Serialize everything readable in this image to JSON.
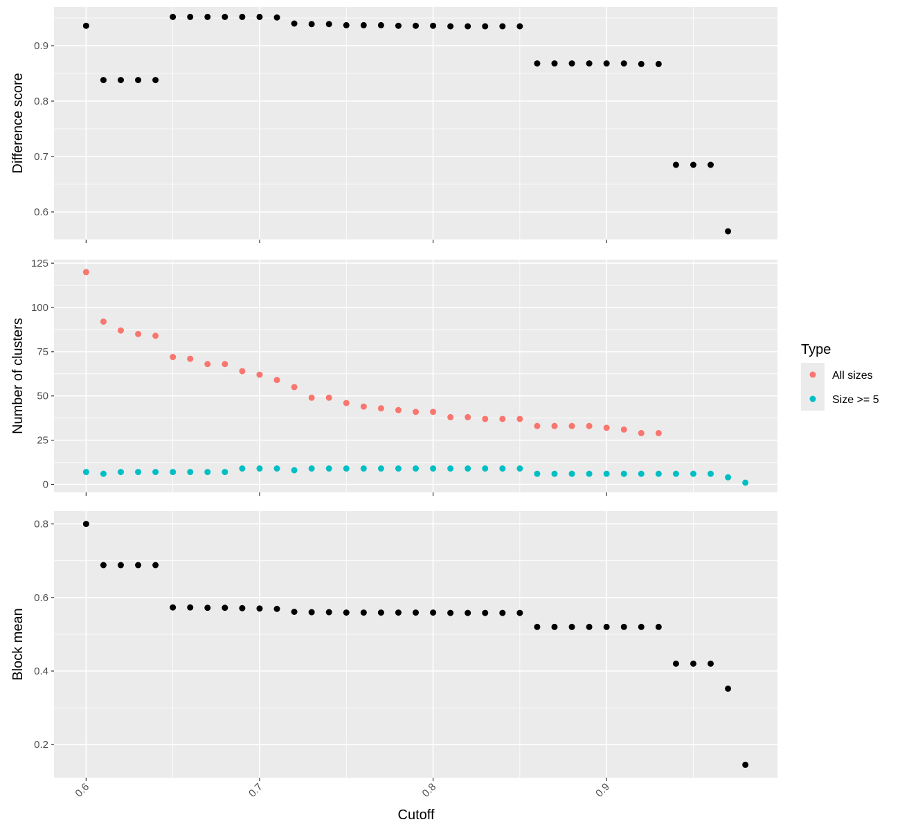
{
  "chart_data": [
    {
      "type": "scatter",
      "ylabel": "Difference score",
      "ylim": [
        0.55,
        0.97
      ],
      "yticks": [
        0.6,
        0.7,
        0.8,
        0.9
      ],
      "xlim": [
        0.5815,
        0.9985
      ],
      "xticks": [
        0.6,
        0.7,
        0.8,
        0.9
      ],
      "show_x_tick_labels": false,
      "grid": true,
      "series": [
        {
          "color": "#000000",
          "x": [
            0.6,
            0.61,
            0.62,
            0.63,
            0.64,
            0.65,
            0.66,
            0.67,
            0.68,
            0.69,
            0.7,
            0.71,
            0.72,
            0.73,
            0.74,
            0.75,
            0.76,
            0.77,
            0.78,
            0.79,
            0.8,
            0.81,
            0.82,
            0.83,
            0.84,
            0.85,
            0.86,
            0.87,
            0.88,
            0.89,
            0.9,
            0.91,
            0.92,
            0.93,
            0.94,
            0.95,
            0.96,
            0.97
          ],
          "y": [
            0.936,
            0.838,
            0.838,
            0.838,
            0.838,
            0.952,
            0.952,
            0.952,
            0.952,
            0.952,
            0.952,
            0.951,
            0.94,
            0.939,
            0.939,
            0.937,
            0.937,
            0.937,
            0.936,
            0.936,
            0.936,
            0.935,
            0.935,
            0.935,
            0.935,
            0.935,
            0.868,
            0.868,
            0.868,
            0.868,
            0.868,
            0.868,
            0.867,
            0.867,
            0.685,
            0.685,
            0.685,
            0.565
          ]
        }
      ]
    },
    {
      "type": "scatter",
      "ylabel": "Number of clusters",
      "ylim": [
        -4.5,
        127
      ],
      "yticks": [
        0,
        25,
        50,
        75,
        100,
        125
      ],
      "xlim": [
        0.5815,
        0.9985
      ],
      "xticks": [
        0.6,
        0.7,
        0.8,
        0.9
      ],
      "show_x_tick_labels": false,
      "grid": true,
      "series": [
        {
          "name": "All sizes",
          "color": "#F8766D",
          "x": [
            0.6,
            0.61,
            0.62,
            0.63,
            0.64,
            0.65,
            0.66,
            0.67,
            0.68,
            0.69,
            0.7,
            0.71,
            0.72,
            0.73,
            0.74,
            0.75,
            0.76,
            0.77,
            0.78,
            0.79,
            0.8,
            0.81,
            0.82,
            0.83,
            0.84,
            0.85,
            0.86,
            0.87,
            0.88,
            0.89,
            0.9,
            0.91,
            0.92,
            0.93
          ],
          "y": [
            120,
            92,
            87,
            85,
            84,
            72,
            71,
            68,
            68,
            64,
            62,
            59,
            55,
            49,
            49,
            46,
            44,
            43,
            42,
            41,
            41,
            38,
            38,
            37,
            37,
            37,
            33,
            33,
            33,
            33,
            32,
            31,
            29,
            29
          ]
        },
        {
          "name": "Size >= 5",
          "color": "#00BFC4",
          "x": [
            0.6,
            0.61,
            0.62,
            0.63,
            0.64,
            0.65,
            0.66,
            0.67,
            0.68,
            0.69,
            0.7,
            0.71,
            0.72,
            0.73,
            0.74,
            0.75,
            0.76,
            0.77,
            0.78,
            0.79,
            0.8,
            0.81,
            0.82,
            0.83,
            0.84,
            0.85,
            0.86,
            0.87,
            0.88,
            0.89,
            0.9,
            0.91,
            0.92,
            0.93,
            0.94,
            0.95,
            0.96,
            0.97,
            0.98
          ],
          "y": [
            7,
            6,
            7,
            7,
            7,
            7,
            7,
            7,
            7,
            9,
            9,
            9,
            8,
            9,
            9,
            9,
            9,
            9,
            9,
            9,
            9,
            9,
            9,
            9,
            9,
            9,
            6,
            6,
            6,
            6,
            6,
            6,
            6,
            6,
            6,
            6,
            6,
            4,
            1
          ]
        }
      ]
    },
    {
      "type": "scatter",
      "ylabel": "Block mean",
      "xlabel": "Cutoff",
      "ylim": [
        0.11,
        0.835
      ],
      "yticks": [
        0.2,
        0.4,
        0.6,
        0.8
      ],
      "xlim": [
        0.5815,
        0.9985
      ],
      "xticks": [
        0.6,
        0.7,
        0.8,
        0.9
      ],
      "xticklabels": [
        "0.6",
        "0.7",
        "0.8",
        "0.9"
      ],
      "show_x_tick_labels": true,
      "grid": true,
      "series": [
        {
          "color": "#000000",
          "x": [
            0.6,
            0.61,
            0.62,
            0.63,
            0.64,
            0.65,
            0.66,
            0.67,
            0.68,
            0.69,
            0.7,
            0.71,
            0.72,
            0.73,
            0.74,
            0.75,
            0.76,
            0.77,
            0.78,
            0.79,
            0.8,
            0.81,
            0.82,
            0.83,
            0.84,
            0.85,
            0.86,
            0.87,
            0.88,
            0.89,
            0.9,
            0.91,
            0.92,
            0.93,
            0.94,
            0.95,
            0.96,
            0.97,
            0.98
          ],
          "y": [
            0.8,
            0.688,
            0.688,
            0.688,
            0.688,
            0.573,
            0.573,
            0.572,
            0.572,
            0.571,
            0.57,
            0.569,
            0.561,
            0.56,
            0.56,
            0.559,
            0.559,
            0.559,
            0.559,
            0.559,
            0.559,
            0.558,
            0.558,
            0.558,
            0.558,
            0.558,
            0.52,
            0.52,
            0.52,
            0.52,
            0.52,
            0.52,
            0.52,
            0.52,
            0.42,
            0.42,
            0.42,
            0.352,
            0.145
          ]
        }
      ]
    }
  ],
  "legend": {
    "title": "Type",
    "position": "right",
    "items": [
      {
        "label": "All sizes",
        "color": "#F8766D"
      },
      {
        "label": "Size >= 5",
        "color": "#00BFC4"
      }
    ]
  }
}
